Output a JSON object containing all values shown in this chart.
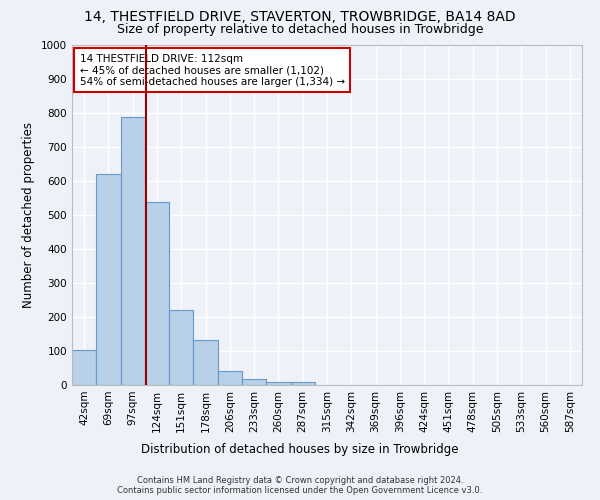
{
  "title": "14, THESTFIELD DRIVE, STAVERTON, TROWBRIDGE, BA14 8AD",
  "subtitle": "Size of property relative to detached houses in Trowbridge",
  "xlabel": "Distribution of detached houses by size in Trowbridge",
  "ylabel": "Number of detached properties",
  "bar_color": "#b8d0e8",
  "bar_edge_color": "#6699cc",
  "background_color": "#eef2f8",
  "grid_color": "#ffffff",
  "categories": [
    "42sqm",
    "69sqm",
    "97sqm",
    "124sqm",
    "151sqm",
    "178sqm",
    "206sqm",
    "233sqm",
    "260sqm",
    "287sqm",
    "315sqm",
    "342sqm",
    "369sqm",
    "396sqm",
    "424sqm",
    "451sqm",
    "478sqm",
    "505sqm",
    "533sqm",
    "560sqm",
    "587sqm"
  ],
  "values": [
    103,
    622,
    787,
    538,
    222,
    133,
    42,
    17,
    10,
    10,
    0,
    0,
    0,
    0,
    0,
    0,
    0,
    0,
    0,
    0,
    0
  ],
  "ylim": [
    0,
    1000
  ],
  "yticks": [
    0,
    100,
    200,
    300,
    400,
    500,
    600,
    700,
    800,
    900,
    1000
  ],
  "property_line_color": "#990000",
  "annotation_text": "14 THESTFIELD DRIVE: 112sqm\n← 45% of detached houses are smaller (1,102)\n54% of semi-detached houses are larger (1,334) →",
  "annotation_box_color": "#ffffff",
  "annotation_border_color": "#cc0000",
  "footer_line1": "Contains HM Land Registry data © Crown copyright and database right 2024.",
  "footer_line2": "Contains public sector information licensed under the Open Government Licence v3.0.",
  "title_fontsize": 10,
  "subtitle_fontsize": 9,
  "tick_fontsize": 7.5,
  "label_fontsize": 8.5,
  "annotation_fontsize": 7.5,
  "footer_fontsize": 6
}
